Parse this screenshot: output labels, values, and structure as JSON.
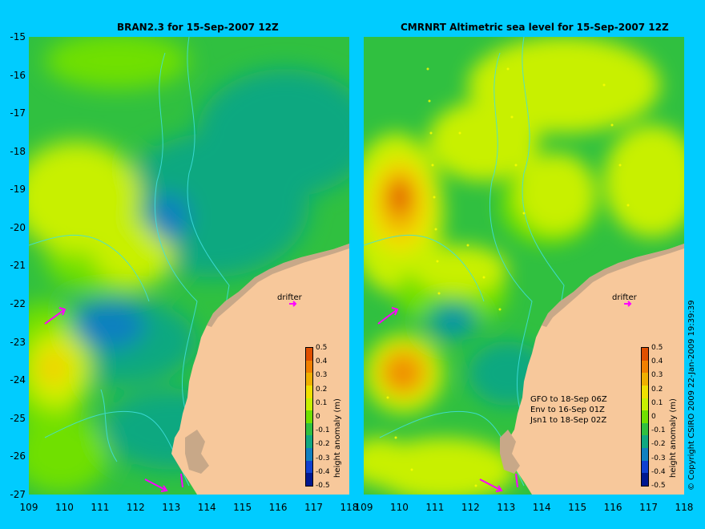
{
  "titles": {
    "left": "BRAN2.3 for 15-Sep-2007 12Z",
    "right": "CMRNRT Altimetric sea level  for 15-Sep-2007 12Z"
  },
  "lat_ticks": [
    "-15",
    "-16",
    "-17",
    "-18",
    "-19",
    "-20",
    "-21",
    "-22",
    "-23",
    "-24",
    "-25",
    "-26",
    "-27"
  ],
  "lon_ticks_left": [
    "109",
    "110",
    "111",
    "112",
    "113",
    "114",
    "115",
    "116",
    "117",
    "118"
  ],
  "lon_ticks_right": [
    "109",
    "110",
    "111",
    "112",
    "113",
    "114",
    "115",
    "116",
    "117",
    "118"
  ],
  "colorbar": {
    "title": "height anomaly (m)",
    "ticks": [
      "0.5",
      "0.4",
      "0.3",
      "0.2",
      "0.1",
      "0",
      "-0.1",
      "-0.2",
      "-0.3",
      "-0.4",
      "-0.5"
    ],
    "colors": [
      "#e05000",
      "#f08000",
      "#f0b000",
      "#f0e000",
      "#c8f000",
      "#70e000",
      "#30c040",
      "#10a880",
      "#1080c0",
      "#1040d0",
      "#001890"
    ]
  },
  "drifter_label": "drifter",
  "tracks_text": [
    "GFO to 18-Sep 06Z",
    "Env to 16-Sep 01Z",
    "Jsn1 to 18-Sep 02Z"
  ],
  "copyright": "© Copyright CSIRO 2009   22-Jan-2009 19:39:39",
  "colors": {
    "background": "#00ccff",
    "land": "#f7c89b",
    "coast": "#c8a888",
    "vectors": "#ff00ff",
    "contours": "#40e0e0"
  }
}
